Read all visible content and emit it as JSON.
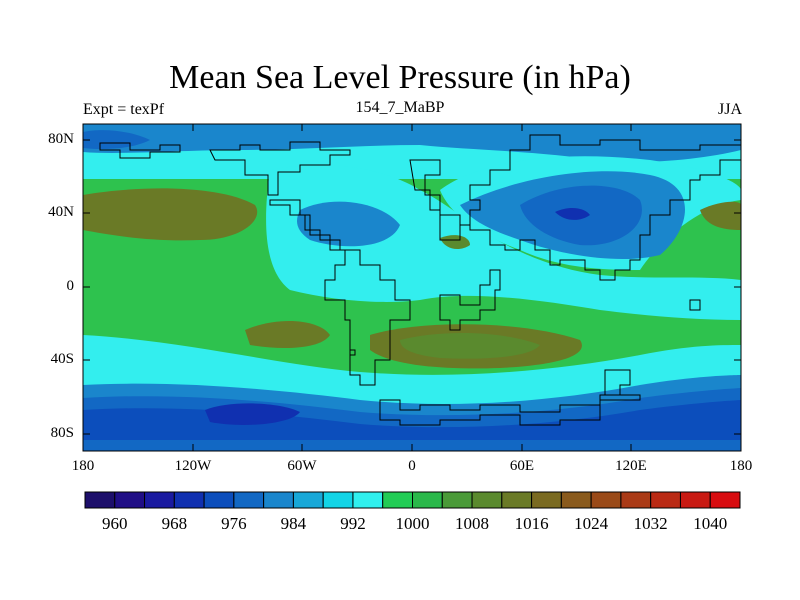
{
  "title": "Mean Sea Level Pressure (in hPa)",
  "subtitle_left": "Expt = texPf",
  "subtitle_center": "154_7_MaBP",
  "subtitle_right": "JJA",
  "lat_ticks": [
    "80N",
    "40N",
    "0",
    "40S",
    "80S"
  ],
  "lon_ticks": [
    "180",
    "120W",
    "60W",
    "0",
    "60E",
    "120E",
    "180"
  ],
  "colorbar": {
    "labels": [
      "960",
      "968",
      "976",
      "984",
      "992",
      "1000",
      "1008",
      "1016",
      "1024",
      "1032",
      "1040"
    ],
    "colors": [
      "#1d0f6b",
      "#200e86",
      "#1a1aa0",
      "#1030b0",
      "#0c4ebc",
      "#1268c4",
      "#1a86cc",
      "#18a8d8",
      "#12d4e6",
      "#30f0ee",
      "#22cc55",
      "#2ab84a",
      "#4a9a38",
      "#5a8a2e",
      "#6a7a26",
      "#7a6a20",
      "#8a5a1c",
      "#9a4a18",
      "#aa3a16",
      "#ba2a14",
      "#c81a12",
      "#d80c10"
    ]
  },
  "map_regions": {
    "background": "#2ec24e",
    "land_outline": "continents"
  }
}
